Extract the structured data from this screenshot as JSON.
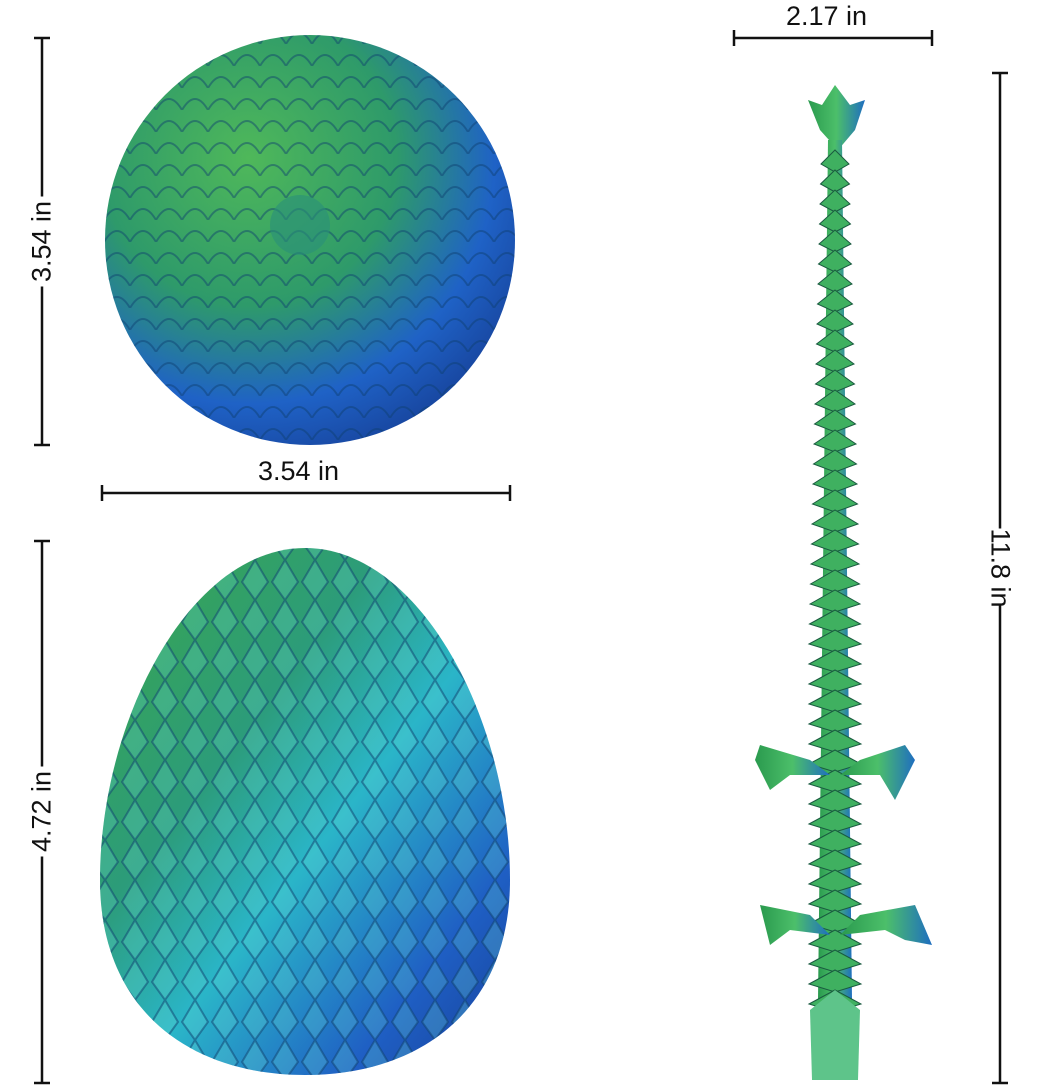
{
  "dimensions": {
    "ball_height": "3.54 in",
    "ball_width": "3.54 in",
    "egg_height": "4.72 in",
    "dragon_width": "2.17 in",
    "dragon_length": "11.8 in"
  },
  "colors": {
    "green": "#3aa64a",
    "blue": "#1f5fc4",
    "teal": "#2bb3b0",
    "line": "#111111"
  }
}
